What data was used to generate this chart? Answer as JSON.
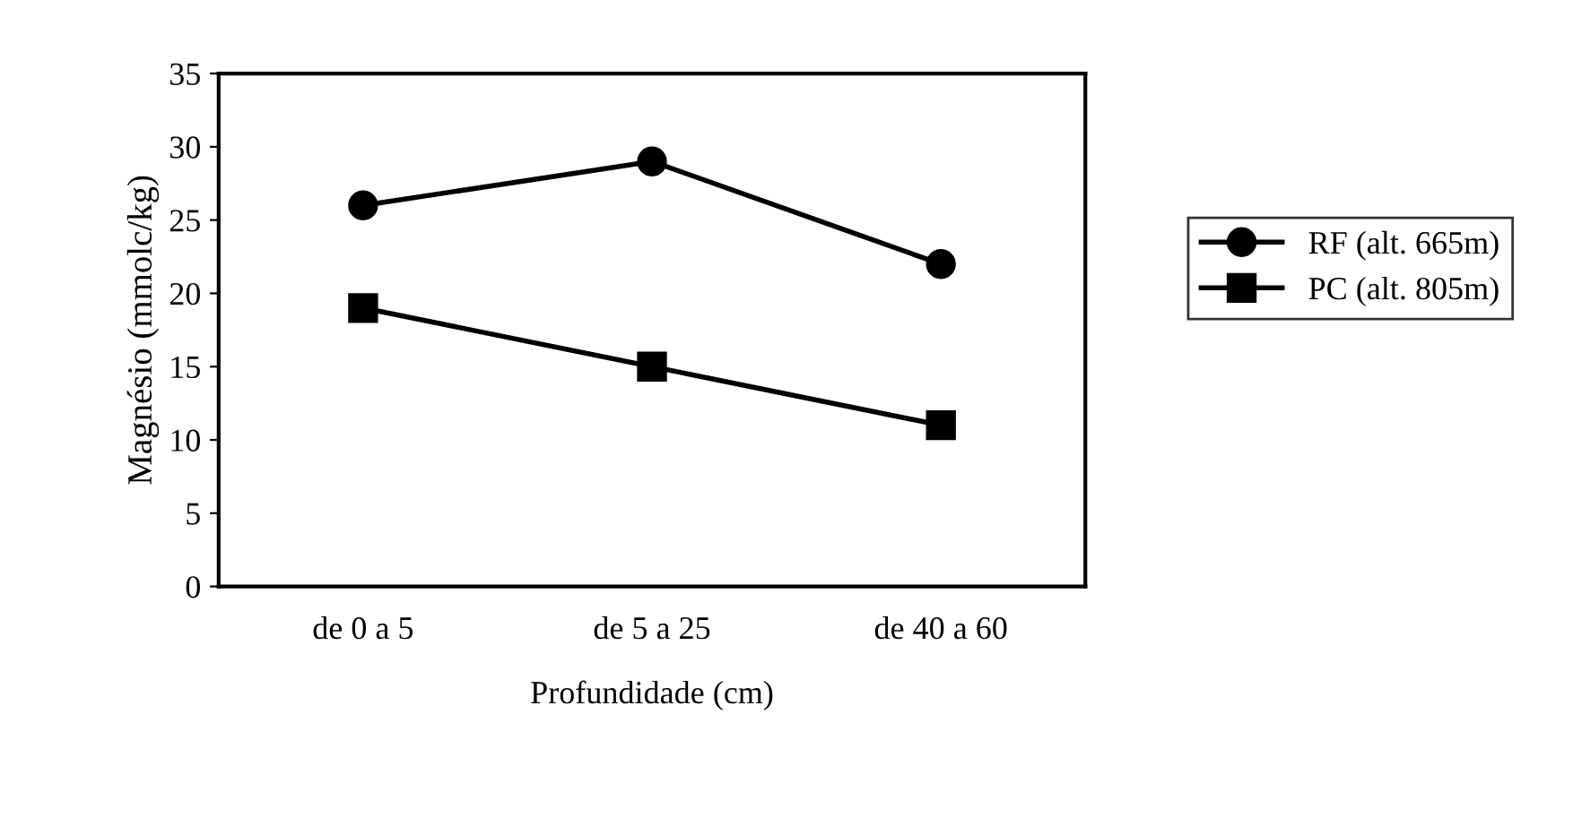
{
  "chart_data": {
    "type": "line",
    "xlabel": "Profundidade (cm)",
    "ylabel": "Magnésio (mmolc/kg)",
    "categories": [
      "de 0 a 5",
      "de 5 a 25",
      "de 40 a 60"
    ],
    "series": [
      {
        "name": "RF (alt. 665m)",
        "color": "#000000",
        "marker": "circle",
        "values": [
          26,
          29,
          22
        ]
      },
      {
        "name": "PC (alt. 805m)",
        "color": "#000000",
        "marker": "square",
        "values": [
          19,
          15,
          11
        ]
      }
    ],
    "ylim": [
      0,
      35
    ],
    "yticks": [
      0,
      5,
      10,
      15,
      20,
      25,
      30,
      35
    ],
    "grid": false,
    "legend": "right",
    "line_style": "solid"
  }
}
